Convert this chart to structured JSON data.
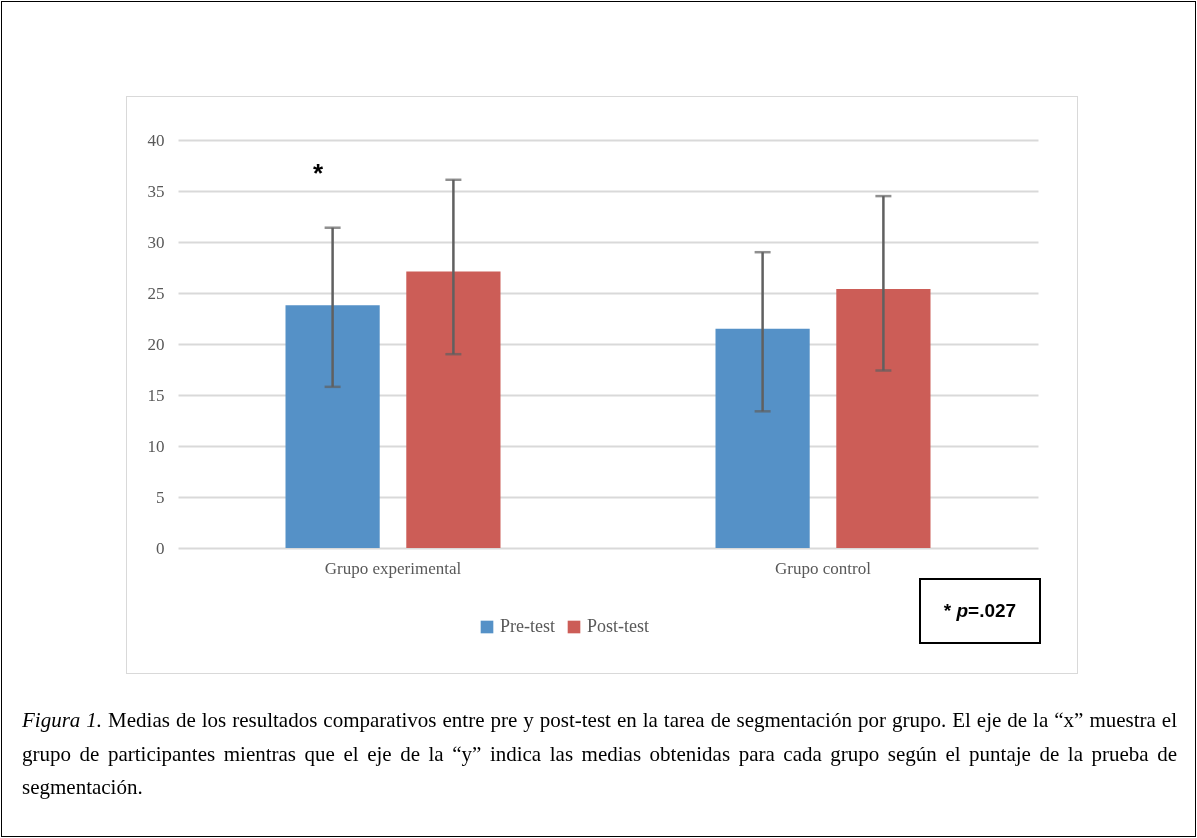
{
  "chart_data": {
    "type": "bar",
    "categories": [
      "Grupo experimental",
      "Grupo control"
    ],
    "series": [
      {
        "name": "Pre-test",
        "color": "#5591c7",
        "values": [
          23.8,
          21.5
        ],
        "errors": [
          [
            15.8,
            31.4
          ],
          [
            13.4,
            29.0
          ]
        ]
      },
      {
        "name": "Post-test",
        "color": "#cc5d57",
        "values": [
          27.1,
          25.4
        ],
        "errors": [
          [
            19.0,
            36.1
          ],
          [
            17.4,
            34.5
          ]
        ]
      }
    ],
    "ylim": [
      0,
      40
    ],
    "yticks": [
      0,
      5,
      10,
      15,
      20,
      25,
      30,
      35,
      40
    ],
    "grid": "y",
    "legend": "bottom",
    "annotations": [
      "*",
      "* p=.027",
      "Figura 1. Medias de los resultados comparativos entre pre y post-test en la tarea de segmentación por grupo. El eje de la “x” muestra el grupo de participantes mientras que el eje de la “y” indica las medias obtenidas para cada grupo según el puntaje de la prueba de segmentación."
    ]
  }
}
